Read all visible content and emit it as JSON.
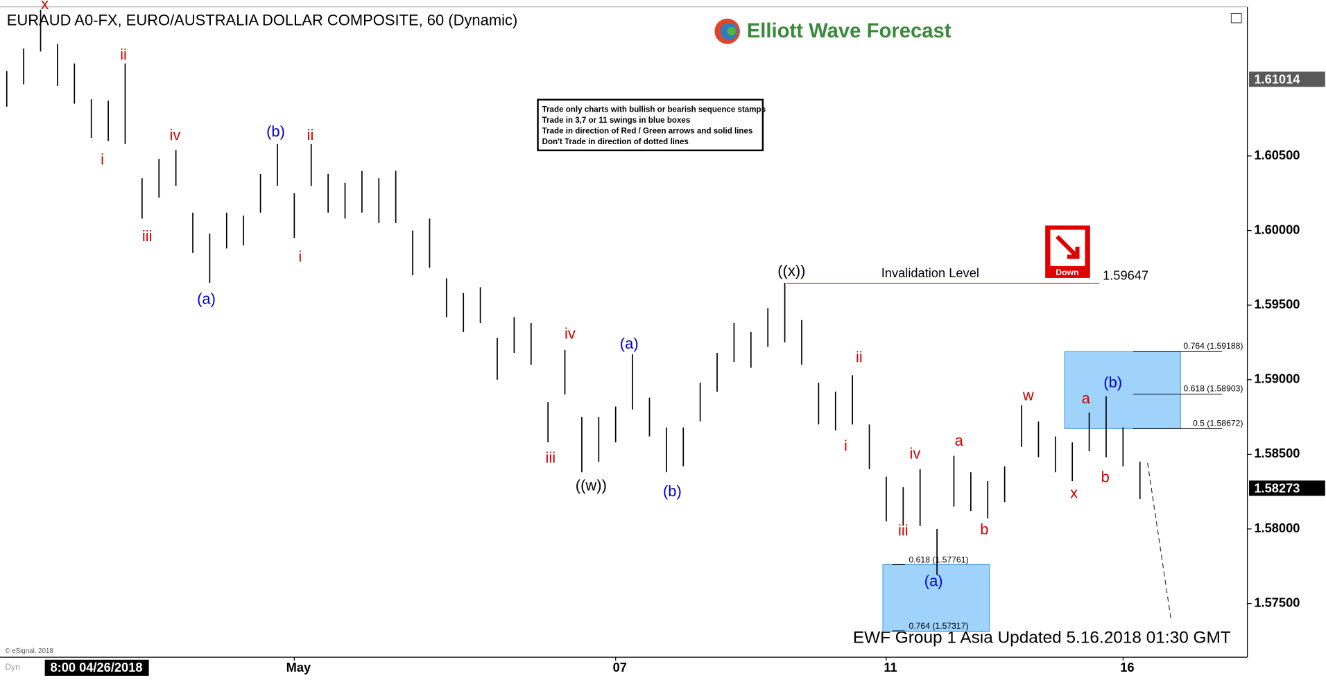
{
  "chart_data": {
    "type": "ohlc",
    "title": "EURAUD A0-FX, EURO/AUSTRALIA DOLLAR COMPOSITE, 60 (Dynamic)",
    "brand": "Elliott Wave Forecast",
    "rules": [
      "Trade only charts with bullish or bearish sequence stamps",
      "Trade in 3,7 or 11 swings in blue boxes",
      "Trade in direction of Red / Green arrows and solid lines",
      "Don't Trade in direction of dotted lines"
    ],
    "signal": "Down",
    "footer": "EWF Group 1 Asia Updated 5.16.2018 01:30 GMT",
    "copyright": "© eSignal, 2018",
    "mode": "Dyn",
    "color": "#000000",
    "categories": [
      null,
      null,
      null,
      null,
      null,
      "8:00 04/26/2018",
      null,
      null,
      null,
      null,
      null,
      null,
      null,
      null,
      null,
      null,
      null,
      "May",
      null,
      null,
      null,
      null,
      null,
      null,
      null,
      null,
      null,
      null,
      null,
      null,
      null,
      null,
      null,
      null,
      null,
      null,
      "07",
      null,
      null,
      null,
      null,
      null,
      null,
      null,
      null,
      null,
      null,
      null,
      null,
      null,
      null,
      null,
      "11",
      null,
      null,
      null,
      null,
      null,
      null,
      null,
      null,
      null,
      null,
      null,
      null,
      null,
      "16",
      null
    ],
    "high": [
      1.6107,
      1.6122,
      1.6148,
      1.6125,
      1.6112,
      1.6088,
      1.6087,
      1.6112,
      1.6035,
      1.6048,
      1.6054,
      1.6012,
      1.5998,
      1.6012,
      1.601,
      1.6038,
      1.6058,
      1.6025,
      1.6058,
      1.6038,
      1.6032,
      1.604,
      1.6035,
      1.604,
      1.6,
      1.6008,
      1.5968,
      1.5958,
      1.5962,
      1.5928,
      1.5942,
      1.5938,
      1.5885,
      1.592,
      1.5875,
      1.5875,
      1.5882,
      1.5917,
      1.5888,
      1.5868,
      1.5868,
      1.5898,
      1.5918,
      1.5938,
      1.5932,
      1.5948,
      1.5965,
      1.594,
      1.5898,
      1.5892,
      1.5903,
      1.587,
      1.5835,
      1.5828,
      1.584,
      1.58,
      1.5849,
      1.5838,
      1.5832,
      1.5842,
      1.5883,
      1.5872,
      1.5862,
      1.5858,
      1.5878,
      1.5889,
      1.5868,
      1.5845
    ],
    "low": [
      1.6083,
      1.6098,
      1.612,
      1.6097,
      1.6085,
      1.6062,
      1.606,
      1.6058,
      1.6008,
      1.6022,
      1.603,
      1.5985,
      1.5965,
      1.5988,
      1.599,
      1.6012,
      1.603,
      1.5995,
      1.603,
      1.6012,
      1.6008,
      1.6012,
      1.6005,
      1.6005,
      1.597,
      1.5975,
      1.5942,
      1.5932,
      1.5938,
      1.59,
      1.5918,
      1.591,
      1.5858,
      1.589,
      1.5838,
      1.5845,
      1.5858,
      1.588,
      1.5862,
      1.5838,
      1.5842,
      1.5872,
      1.5892,
      1.5912,
      1.5908,
      1.5922,
      1.5925,
      1.591,
      1.587,
      1.5866,
      1.587,
      1.584,
      1.5805,
      1.5802,
      1.5802,
      1.5769,
      1.5815,
      1.5812,
      1.5807,
      1.5818,
      1.5855,
      1.5848,
      1.5838,
      1.5832,
      1.5852,
      1.5848,
      1.5842,
      1.582
    ],
    "ylim": [
      1.5714,
      1.615
    ],
    "yticks": [
      {
        "value": 1.575,
        "label": "1.57500"
      },
      {
        "value": 1.58,
        "label": "1.58000"
      },
      {
        "value": 1.585,
        "label": "1.58500"
      },
      {
        "value": 1.59,
        "label": "1.59000"
      },
      {
        "value": 1.595,
        "label": "1.59500"
      },
      {
        "value": 1.6,
        "label": "1.60000"
      },
      {
        "value": 1.605,
        "label": "1.60500"
      }
    ],
    "price_markers": [
      {
        "value": 1.61014,
        "color": "#595959"
      },
      {
        "value": 1.58273,
        "color": "#000000"
      }
    ],
    "invalidation": {
      "label": "Invalidation  Level",
      "value": 1.59647,
      "color": "#e00000"
    },
    "fib_levels": [
      {
        "value": 1.59188,
        "label": "0.764 (1.59188)"
      },
      {
        "value": 1.58903,
        "label": "0.618 (1.58903)"
      },
      {
        "value": 1.58672,
        "label": "0.5 (1.58672)"
      },
      {
        "value": 1.57761,
        "label": "0.618 (1.57761)"
      },
      {
        "value": 1.57317,
        "label": "0.764 (1.57317)"
      }
    ],
    "box_color": "#9fd3fb",
    "wave_labels": [
      {
        "text": "x",
        "color": "#d00000"
      },
      {
        "text": "ii",
        "color": "#d00000"
      },
      {
        "text": "i",
        "color": "#d00000"
      },
      {
        "text": "iv",
        "color": "#d00000"
      },
      {
        "text": "iii",
        "color": "#d00000"
      },
      {
        "text": "(a)",
        "color": "#0000c8"
      },
      {
        "text": "(b)",
        "color": "#0000c8"
      },
      {
        "text": "ii",
        "color": "#d00000"
      },
      {
        "text": "i",
        "color": "#d00000"
      },
      {
        "text": "iv",
        "color": "#d00000"
      },
      {
        "text": "iii",
        "color": "#d00000"
      },
      {
        "text": "((w))",
        "color": "#000000"
      },
      {
        "text": "(a)",
        "color": "#0000c8"
      },
      {
        "text": "(b)",
        "color": "#0000c8"
      },
      {
        "text": "((x))",
        "color": "#000000"
      },
      {
        "text": "ii",
        "color": "#d00000"
      },
      {
        "text": "i",
        "color": "#d00000"
      },
      {
        "text": "iv",
        "color": "#d00000"
      },
      {
        "text": "iii",
        "color": "#d00000"
      },
      {
        "text": "a",
        "color": "#d00000"
      },
      {
        "text": "(a)",
        "color": "#0000c8"
      },
      {
        "text": "b",
        "color": "#d00000"
      },
      {
        "text": "w",
        "color": "#d00000"
      },
      {
        "text": "x",
        "color": "#d00000"
      },
      {
        "text": "a",
        "color": "#d00000"
      },
      {
        "text": "b",
        "color": "#d00000"
      },
      {
        "text": "(b)",
        "color": "#0000c8"
      }
    ]
  }
}
